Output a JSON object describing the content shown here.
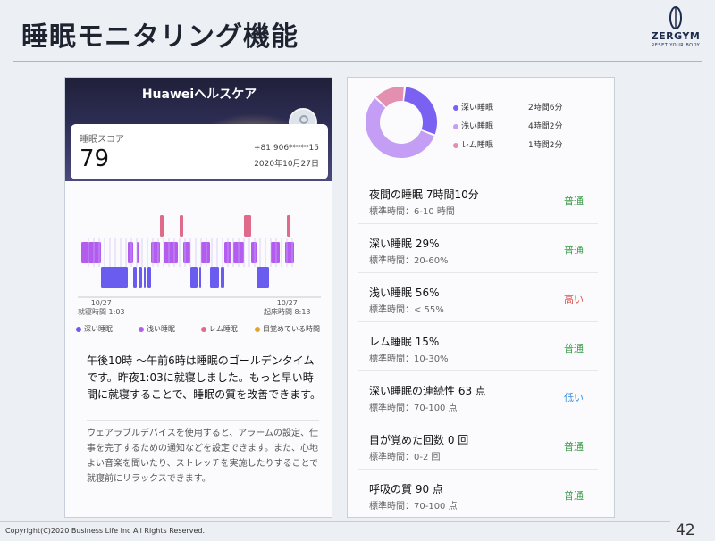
{
  "slide": {
    "title": "睡眠モニタリング機能",
    "logo_text": "ZERGYM",
    "logo_sub": "RESET YOUR BODY",
    "footer": "Copyright(C)2020 Business Life Inc All Rights Reserved.",
    "page_number": "42"
  },
  "phone": {
    "app_title": "Huaweiヘルスケア",
    "score_label": "睡眠スコア",
    "score_value": "79",
    "phone_number": "+81 906*****15",
    "date": "2020年10月27日",
    "sleep_start": {
      "date": "10/27",
      "label": "就寝時間 1:03"
    },
    "sleep_end": {
      "date": "10/27",
      "label": "起床時間 8:13"
    },
    "legend": [
      {
        "label": "深い睡眠",
        "color": "#6b5cf0"
      },
      {
        "label": "浅い睡眠",
        "color": "#b55cf0"
      },
      {
        "label": "レム睡眠",
        "color": "#e06a8a"
      },
      {
        "label": "目覚めている時間",
        "color": "#e0a52c"
      }
    ],
    "advice_main": "午後10時 ～午前6時は睡眠のゴールデンタイムです。昨夜1:03に就寝しました。もっと早い時間に就寝することで、睡眠の質を改善できます。",
    "advice_sub": "ウェアラブルデバイスを使用すると、アラームの設定、仕事を完了するための通知などを設定できます。また、心地よい音楽を聞いたり、ストレッチを実施したりすることで就寝前にリラックスできます。"
  },
  "breakdown": [
    {
      "label": "深い睡眠",
      "duration": "2時間6分",
      "minutes": 126,
      "color": "#7b61f2"
    },
    {
      "label": "浅い睡眠",
      "duration": "4時間2分",
      "minutes": 242,
      "color": "#c49df5"
    },
    {
      "label": "レム睡眠",
      "duration": "1時間2分",
      "minutes": 62,
      "color": "#e38fb0"
    }
  ],
  "stats": [
    {
      "title": "夜間の睡眠  7時間10分",
      "standard": "標準時間：6-10 時間",
      "status": "普通",
      "status_color": "#3d9b4a"
    },
    {
      "title": "深い睡眠  29%",
      "standard": "標準時間：20-60%",
      "status": "普通",
      "status_color": "#3d9b4a"
    },
    {
      "title": "浅い睡眠  56%",
      "standard": "標準時間：< 55%",
      "status": "高い",
      "status_color": "#d9534f"
    },
    {
      "title": "レム睡眠  15%",
      "standard": "標準時間：10-30%",
      "status": "普通",
      "status_color": "#3d9b4a"
    },
    {
      "title": "深い睡眠の連続性  63 点",
      "standard": "標準時間：70-100 点",
      "status": "低い",
      "status_color": "#3e8fd8"
    },
    {
      "title": "目が覚めた回数  0 回",
      "standard": "標準時間：0-2 回",
      "status": "普通",
      "status_color": "#3d9b4a"
    },
    {
      "title": "呼吸の質  90 点",
      "standard": "標準時間：70-100 点",
      "status": "普通",
      "status_color": "#3d9b4a"
    }
  ]
}
